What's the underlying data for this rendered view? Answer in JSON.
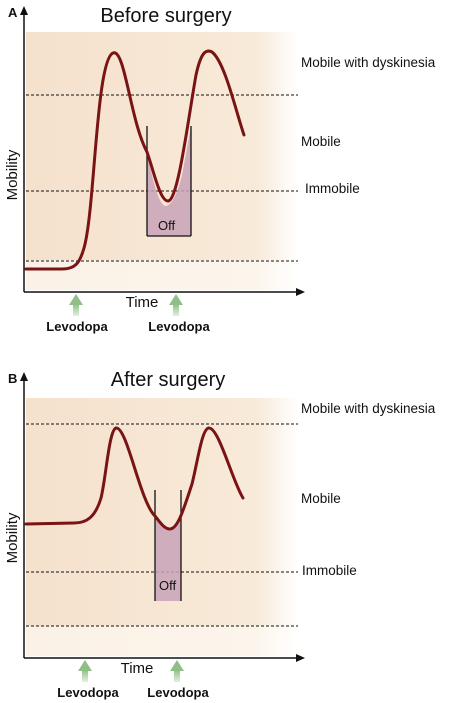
{
  "panels": [
    {
      "letter": "A",
      "title": "Before surgery",
      "ylabel": "Mobility",
      "xlabel": "Time",
      "zones": {
        "dyskinesia": "Mobile with dyskinesia",
        "mobile": "Mobile",
        "immobile": "Immobile"
      },
      "off_label": "Off",
      "doses": [
        "Levodopa",
        "Levodopa"
      ]
    },
    {
      "letter": "B",
      "title": "After surgery",
      "ylabel": "Mobility",
      "xlabel": "Time",
      "zones": {
        "dyskinesia": "Mobile with dyskinesia",
        "mobile": "Mobile",
        "immobile": "Immobile"
      },
      "off_label": "Off",
      "doses": [
        "Levodopa",
        "Levodopa"
      ]
    }
  ],
  "colors": {
    "background_band": "#f8e8d8",
    "lower_band": "#fcf3e8",
    "curve": "#7a1414",
    "off_fill": "#c8a2b9",
    "arrow": "#8fbf87"
  }
}
